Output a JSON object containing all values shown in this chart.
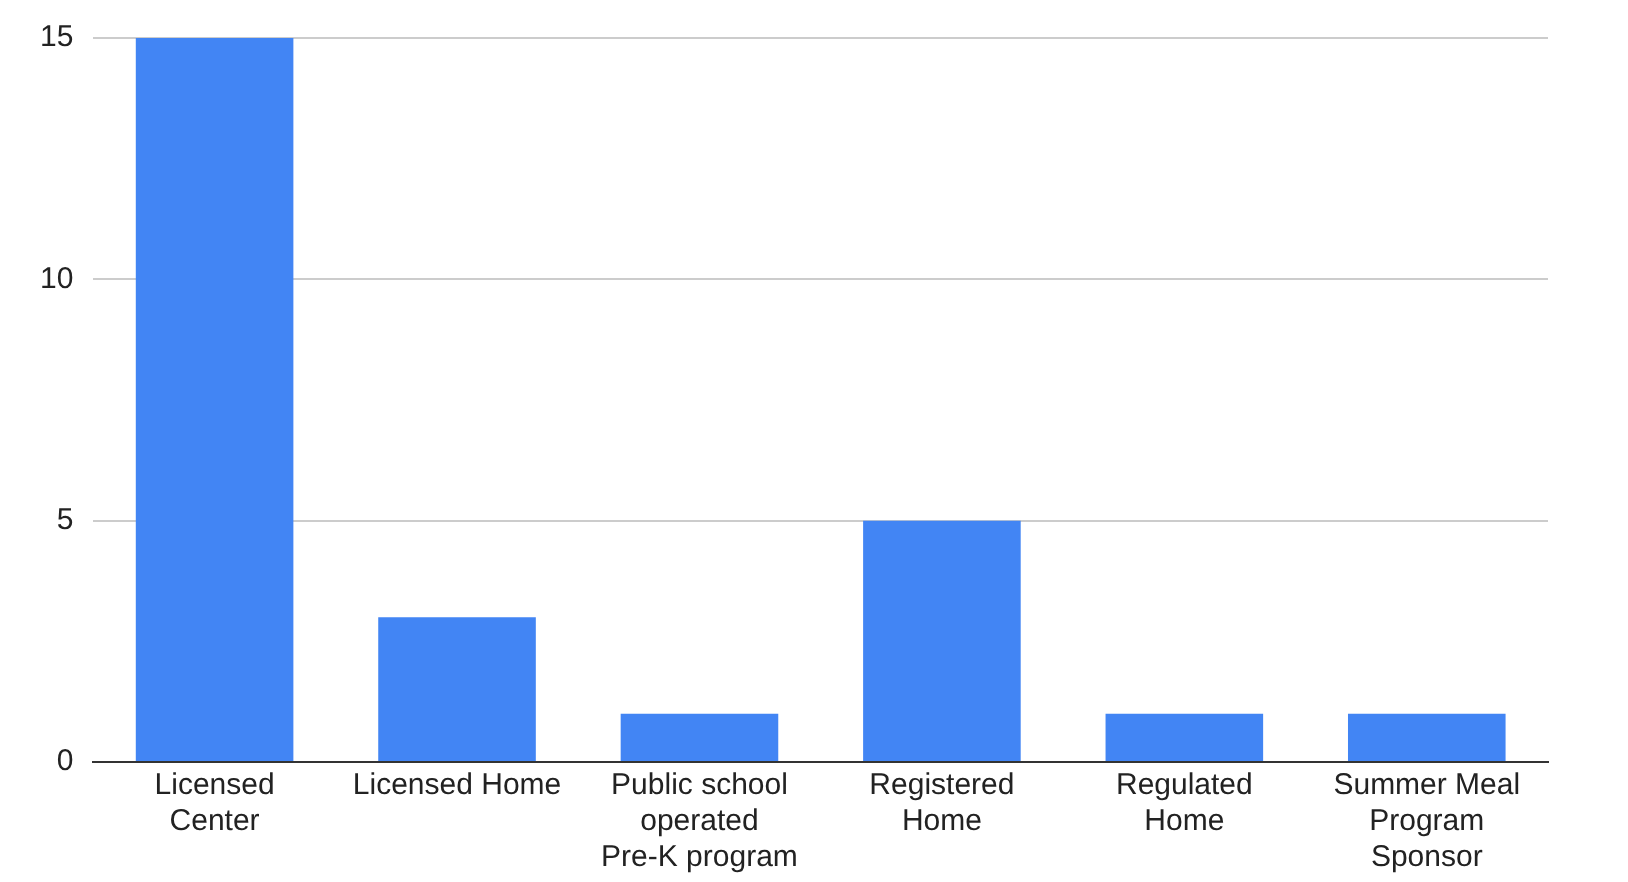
{
  "chart_data": {
    "type": "bar",
    "categories": [
      "Licensed Center",
      "Licensed Home",
      "Public school operated Pre-K program",
      "Registered Home",
      "Regulated Home",
      "Summer Meal Program Sponsor"
    ],
    "values": [
      15,
      3,
      1,
      5,
      1,
      1
    ],
    "color": "#4285f4",
    "ylim": [
      0,
      15
    ],
    "yticks": [
      0,
      5,
      10,
      15
    ],
    "grid": "y"
  }
}
